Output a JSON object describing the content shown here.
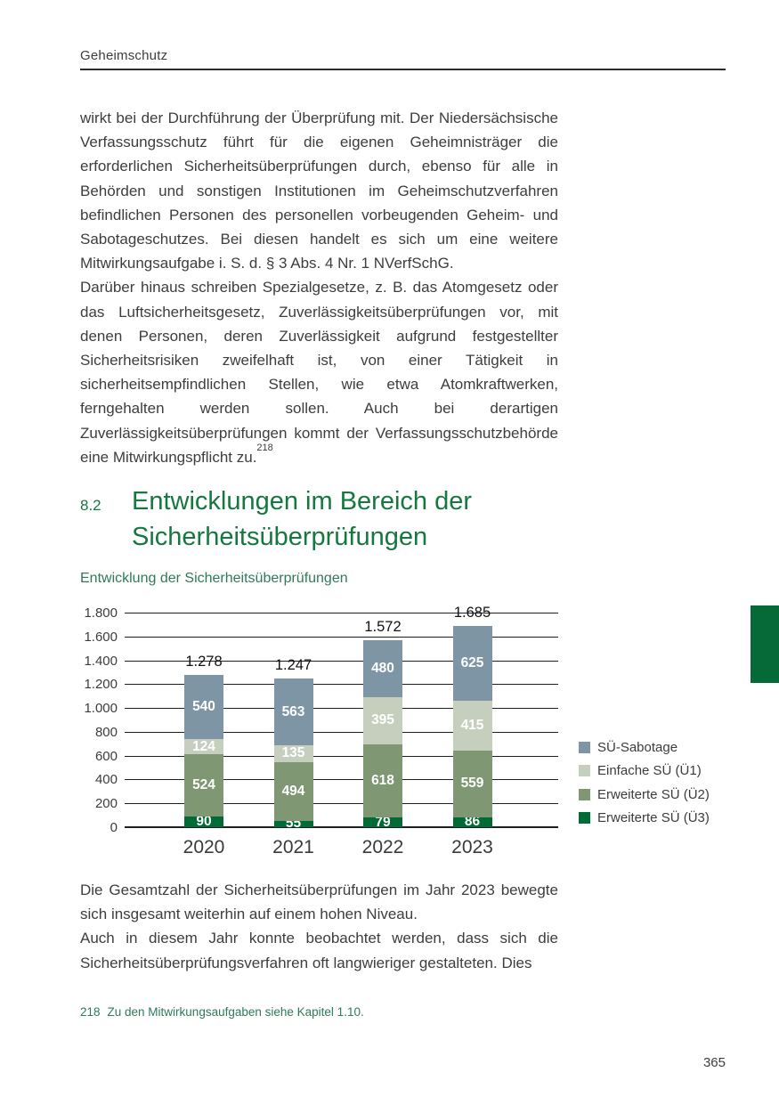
{
  "page": {
    "header": "Geheimschutz",
    "page_number": "365"
  },
  "paragraphs": {
    "p1": "wirkt bei der Durchführung der Überprüfung mit. Der Niedersächsische Verfassungsschutz führt für die eigenen Geheimnisträger die erforderlichen Sicherheitsüberprüfungen durch, ebenso für alle in Behörden und sonstigen Institutionen im Geheimschutzverfahren befindlichen Personen des personellen vorbeugenden Geheim- und Sabotageschutzes. Bei diesen handelt es sich um eine weitere Mitwirkungsaufgabe i. S. d. § 3 Abs. 4 Nr. 1 NVerfSchG.",
    "p2": "Darüber hinaus schreiben Spezialgesetze, z. B. das Atomgesetz oder das Luftsicherheitsgesetz, Zuverlässigkeitsüberprüfungen vor, mit denen Personen, deren Zuverlässigkeit aufgrund festgestellter Sicherheitsrisiken zweifelhaft ist, von einer Tätigkeit in sicherheitsempfindlichen Stellen, wie etwa Atomkraftwerken, ferngehalten werden sollen. Auch bei derartigen Zuverlässigkeitsüberprüfungen kommt der Verfassungsschutzbehörde eine Mitwirkungspflicht zu.",
    "p2_footnote_ref": "218",
    "p3": "Die Gesamtzahl der Sicherheitsüberprüfungen im Jahr 2023 bewegte sich insgesamt weiterhin auf einem hohen Niveau.",
    "p4": "Auch in diesem Jahr konnte beobachtet werden, dass sich die Sicherheitsüberprüfungsverfahren oft langwieriger gestalteten. Dies"
  },
  "section": {
    "number": "8.2",
    "title": "Entwicklungen im Bereich der Sicherheitsüberprüfungen"
  },
  "chart_data": {
    "type": "bar",
    "subtype": "stacked",
    "title": "Entwicklung der Sicherheitsüberprüfungen",
    "categories": [
      "2020",
      "2021",
      "2022",
      "2023"
    ],
    "series": [
      {
        "name": "Erweiterte SÜ (Ü3)",
        "color": "#006b35",
        "values": [
          90,
          55,
          79,
          86
        ]
      },
      {
        "name": "Erweiterte SÜ (Ü2)",
        "color": "#7f9873",
        "values": [
          524,
          494,
          618,
          559
        ]
      },
      {
        "name": "Einfache SÜ (Ü1)",
        "color": "#c6cfbd",
        "values": [
          124,
          135,
          395,
          415
        ]
      },
      {
        "name": "SÜ-Sabotage",
        "color": "#7e95a5",
        "values": [
          540,
          563,
          480,
          625
        ]
      }
    ],
    "totals": [
      "1.278",
      "1.247",
      "1.572",
      "1.685"
    ],
    "ytick_labels": [
      "1.800",
      "1.600",
      "1.400",
      "1.200",
      "1.000",
      "800",
      "600",
      "400",
      "200",
      "0"
    ],
    "ylim": [
      0,
      1800
    ],
    "grid": true,
    "legend_position": "right",
    "legend": [
      {
        "label": "SÜ-Sabotage",
        "color": "#7e95a5"
      },
      {
        "label": "Einfache SÜ (Ü1)",
        "color": "#c6cfbd"
      },
      {
        "label": "Erweiterte SÜ (Ü2)",
        "color": "#7f9873"
      },
      {
        "label": "Erweiterte SÜ (Ü3)",
        "color": "#006b35"
      }
    ]
  },
  "footnote": {
    "number": "218",
    "text": "Zu den Mitwirkungsaufgaben siehe Kapitel 1.10."
  },
  "colors": {
    "heading_green": "#15783f",
    "accent_green": "#2f7a58",
    "side_tab_green": "#056a38",
    "text": "#3d3d3d"
  }
}
